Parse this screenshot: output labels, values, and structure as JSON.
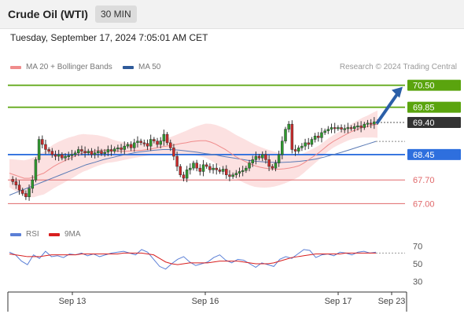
{
  "header": {
    "title": "Crude Oil (WTI)",
    "timeframe": "30 MIN"
  },
  "timestamp": "Tuesday, September 17, 2024 7:05:01 AM CET",
  "legend": {
    "bb": {
      "label": "MA 20 + Bollinger Bands",
      "color": "#f08c8c"
    },
    "ma50": {
      "label": "MA 50",
      "color": "#2f5b9a"
    },
    "credit": "Research © 2024 Trading Central"
  },
  "rsi_legend": {
    "rsi": {
      "label": "RSI",
      "color": "#5b7fd6"
    },
    "ma": {
      "label": "9MA",
      "color": "#d81e1e"
    }
  },
  "colors": {
    "green": "#5aa40e",
    "blue": "#2e6fde",
    "red": "#e0686a",
    "dark": "#333333",
    "up": "#2e9a2e",
    "down": "#cc2a2a",
    "arrow": "#2b5fa8"
  },
  "chart_data": {
    "type": "line",
    "x_labels": [
      "Sep 13",
      "Sep 16",
      "Sep 17",
      "Sep 23"
    ],
    "ylim": [
      66.8,
      70.7
    ],
    "levels": [
      {
        "value": 70.5,
        "label": "70.50",
        "type": "resistance"
      },
      {
        "value": 69.85,
        "label": "69.85",
        "type": "resistance"
      },
      {
        "value": 69.4,
        "label": "69.40",
        "type": "current"
      },
      {
        "value": 68.45,
        "label": "68.45",
        "type": "pivot"
      },
      {
        "value": 67.7,
        "label": "67.70",
        "type": "support"
      },
      {
        "value": 67.0,
        "label": "67.00",
        "type": "support"
      }
    ],
    "price": [
      67.72,
      67.65,
      67.55,
      67.4,
      67.3,
      67.2,
      67.45,
      67.7,
      68.3,
      68.9,
      68.75,
      68.6,
      68.55,
      68.45,
      68.4,
      68.45,
      68.35,
      68.4,
      68.42,
      68.45,
      68.5,
      68.6,
      68.55,
      68.5,
      68.55,
      68.45,
      68.5,
      68.55,
      68.48,
      68.52,
      68.6,
      68.55,
      68.62,
      68.65,
      68.6,
      68.7,
      68.75,
      68.65,
      68.8,
      68.85,
      68.8,
      68.78,
      68.7,
      68.9,
      68.85,
      68.75,
      68.85,
      69.05,
      68.8,
      68.65,
      68.4,
      68.1,
      67.85,
      67.75,
      68.0,
      68.05,
      68.2,
      68.05,
      67.95,
      68.15,
      68.1,
      68.0,
      68.05,
      68.0,
      67.95,
      68.02,
      67.85,
      67.8,
      67.85,
      67.9,
      67.95,
      67.98,
      68.05,
      68.2,
      68.3,
      68.4,
      68.35,
      68.45,
      68.3,
      68.1,
      68.05,
      68.2,
      68.45,
      68.85,
      69.2,
      69.35,
      68.6,
      68.55,
      68.65,
      68.7,
      68.8,
      68.75,
      68.9,
      69.0,
      68.95,
      69.1,
      69.15,
      69.2,
      69.25,
      69.22,
      69.25,
      69.2,
      69.22,
      69.25,
      69.22,
      69.28,
      69.3,
      69.25,
      69.35,
      69.38,
      69.35,
      69.42,
      69.4
    ],
    "ma20": [
      67.9,
      67.85,
      67.8,
      67.75,
      67.75,
      67.78,
      67.85,
      67.9,
      68.0,
      68.1,
      68.18,
      68.25,
      68.32,
      68.38,
      68.45,
      68.5,
      68.52,
      68.55,
      68.57,
      68.58,
      68.58,
      68.56,
      68.55,
      68.55,
      68.55,
      68.56,
      68.57,
      68.58,
      68.6,
      68.62,
      68.65,
      68.68,
      68.7,
      68.72,
      68.75,
      68.78,
      68.8,
      68.83,
      68.85,
      68.86,
      68.86,
      68.82,
      68.76,
      68.68,
      68.6,
      68.5,
      68.4,
      68.32,
      68.25,
      68.18,
      68.12,
      68.08,
      68.05,
      68.03,
      68.02,
      68.02,
      68.03,
      68.05,
      68.08,
      68.12,
      68.2,
      68.3,
      68.4,
      68.5,
      68.62,
      68.74,
      68.84,
      68.92,
      69.0,
      69.08,
      69.15,
      69.2,
      69.25,
      69.28,
      69.32,
      69.35
    ],
    "ma50": [
      67.25,
      67.35,
      67.45,
      67.55,
      67.65,
      67.75,
      67.85,
      67.95,
      68.05,
      68.15,
      68.22,
      68.3,
      68.36,
      68.42,
      68.47,
      68.52,
      68.55,
      68.58,
      68.6,
      68.6,
      68.58,
      68.55,
      68.52,
      68.48,
      68.45,
      68.4,
      68.36,
      68.32,
      68.28,
      68.25,
      68.23,
      68.22,
      68.22,
      68.23,
      68.25,
      68.28,
      68.32,
      68.38,
      68.45,
      68.52,
      68.6,
      68.68,
      68.76,
      68.84
    ],
    "rsi": [
      63,
      60,
      53,
      49,
      60,
      56,
      64,
      58,
      59,
      57,
      61,
      60,
      62,
      59,
      61,
      58,
      60,
      62,
      63,
      64,
      62,
      60,
      66,
      63,
      55,
      47,
      44,
      50,
      55,
      58,
      52,
      48,
      50,
      52,
      57,
      60,
      54,
      51,
      55,
      54,
      50,
      46,
      51,
      49,
      47,
      55,
      58,
      56,
      61,
      66,
      65,
      57,
      60,
      61,
      59,
      63,
      62,
      60,
      63,
      64,
      62,
      63
    ],
    "rsi_ma": [
      61,
      60,
      59,
      58,
      58,
      58,
      59,
      60,
      60,
      60,
      60,
      60,
      61,
      61,
      61,
      61,
      61,
      61,
      61,
      62,
      62,
      62,
      62,
      61,
      60,
      56,
      52,
      50,
      49,
      50,
      51,
      51,
      51,
      51,
      52,
      53,
      53,
      53,
      53,
      52,
      51,
      50,
      50,
      50,
      51,
      53,
      55,
      57,
      58,
      59,
      60,
      61,
      61,
      61,
      61,
      61,
      62,
      62,
      62,
      62,
      62,
      62
    ],
    "rsi_levels": [
      {
        "value": 70,
        "label": "70"
      },
      {
        "value": 50,
        "label": "50"
      },
      {
        "value": 30,
        "label": "30"
      }
    ],
    "rsi_ylim": [
      20,
      80
    ]
  }
}
